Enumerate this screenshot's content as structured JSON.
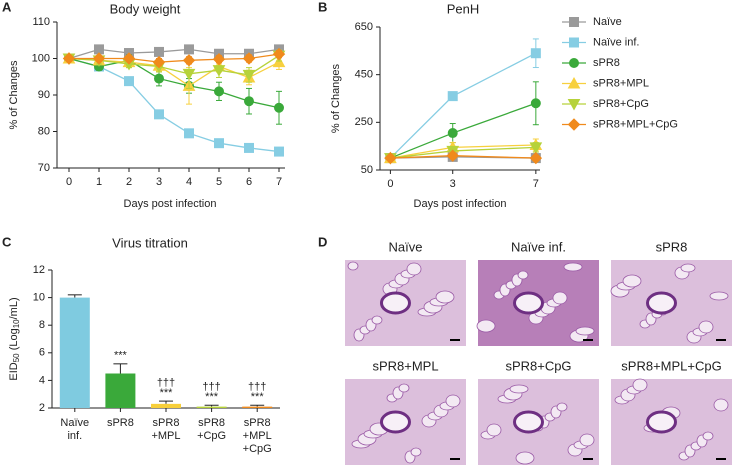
{
  "chart_data": [
    {
      "type": "line",
      "label": "A",
      "title": "Body weight",
      "xlabel": "Days post infection",
      "ylabel": "% of Changes",
      "x": [
        0,
        1,
        2,
        3,
        4,
        5,
        6,
        7
      ],
      "xlim": [
        -0.4,
        7.2
      ],
      "xticks": [
        0,
        1,
        2,
        3,
        4,
        5,
        6,
        7
      ],
      "ylim": [
        70,
        110
      ],
      "yticks": [
        70,
        80,
        90,
        100,
        110
      ],
      "series": [
        {
          "name": "Naïve",
          "color": "#9a9a9a",
          "marker": "square",
          "values": [
            100,
            102.5,
            101.5,
            101.8,
            102.5,
            101.3,
            101.3,
            102.5
          ],
          "errors": [
            0,
            0.5,
            0.5,
            0.5,
            0.5,
            0.5,
            0.5,
            0.5
          ]
        },
        {
          "name": "Naïve inf.",
          "color": "#86cde3",
          "marker": "square",
          "values": [
            100,
            97.8,
            93.8,
            84.7,
            79.5,
            76.8,
            75.5,
            74.5
          ],
          "errors": [
            0,
            0.5,
            0.5,
            0.5,
            0.5,
            0.5,
            0.5,
            0.5
          ]
        },
        {
          "name": "sPR8",
          "color": "#3aa93a",
          "marker": "circle",
          "values": [
            100,
            97.8,
            99.5,
            94.5,
            92.5,
            91,
            88.3,
            86.5
          ],
          "errors": [
            0,
            1,
            1.5,
            2,
            2,
            2.5,
            3.5,
            4.5
          ]
        },
        {
          "name": "sPR8+MPL",
          "color": "#f7d03e",
          "marker": "triangle-up",
          "values": [
            100,
            99.5,
            99,
            98,
            92.5,
            97.8,
            94.8,
            99
          ],
          "errors": [
            0,
            1,
            1.5,
            1.5,
            5,
            1.5,
            2,
            2
          ]
        },
        {
          "name": "sPR8+CpG",
          "color": "#b6d23a",
          "marker": "triangle-down",
          "values": [
            100,
            99.5,
            98.5,
            97.8,
            95.8,
            96.8,
            95.5,
            100.8
          ],
          "errors": [
            0,
            1,
            1,
            1.5,
            4,
            2,
            2,
            1.5
          ]
        },
        {
          "name": "sPR8+MPL+CpG",
          "color": "#f08a1c",
          "marker": "diamond",
          "values": [
            100,
            100,
            100,
            99,
            99.5,
            99.8,
            100,
            101.2
          ],
          "errors": [
            0,
            0.5,
            0.5,
            1,
            1,
            1,
            1,
            1
          ]
        }
      ]
    },
    {
      "type": "line",
      "label": "B",
      "title": "PenH",
      "xlabel": "Days post infection",
      "ylabel": "% of Changes",
      "legend": "right",
      "x": [
        0,
        3,
        7
      ],
      "xlim": [
        -0.5,
        7.2
      ],
      "xticks": [
        0,
        3,
        7
      ],
      "ylim": [
        50,
        650
      ],
      "yticks": [
        50,
        250,
        450,
        650
      ],
      "series": [
        {
          "name": "Naïve",
          "color": "#9a9a9a",
          "marker": "square",
          "values": [
            100,
            105,
            100
          ],
          "errors": [
            5,
            5,
            5
          ]
        },
        {
          "name": "Naïve inf.",
          "color": "#86cde3",
          "marker": "square",
          "values": [
            100,
            360,
            540
          ],
          "errors": [
            10,
            10,
            60
          ]
        },
        {
          "name": "sPR8",
          "color": "#3aa93a",
          "marker": "circle",
          "values": [
            100,
            205,
            330
          ],
          "errors": [
            10,
            40,
            90
          ]
        },
        {
          "name": "sPR8+MPL",
          "color": "#f7d03e",
          "marker": "triangle-up",
          "values": [
            100,
            145,
            155
          ],
          "errors": [
            5,
            20,
            25
          ]
        },
        {
          "name": "sPR8+CpG",
          "color": "#b6d23a",
          "marker": "triangle-down",
          "values": [
            100,
            130,
            145
          ],
          "errors": [
            5,
            15,
            20
          ]
        },
        {
          "name": "sPR8+MPL+CpG",
          "color": "#f08a1c",
          "marker": "diamond",
          "values": [
            100,
            110,
            100
          ],
          "errors": [
            5,
            10,
            10
          ]
        }
      ]
    },
    {
      "type": "bar",
      "label": "C",
      "title": "Virus titration",
      "ylabel": [
        "EID",
        "50",
        " (Log",
        "10",
        "/mL)"
      ],
      "categories": [
        [
          "Naïve",
          "inf."
        ],
        [
          "sPR8"
        ],
        [
          "sPR8",
          "+MPL"
        ],
        [
          "sPR8",
          "+CpG"
        ],
        [
          "sPR8",
          "+MPL",
          "+CpG"
        ]
      ],
      "values": [
        10,
        4.5,
        2.3,
        2.1,
        2.1
      ],
      "errors": [
        0.2,
        0.7,
        0.2,
        0.1,
        0.1
      ],
      "colors": [
        "#7fcbe0",
        "#3aa93a",
        "#f7cf3a",
        "#b6d23a",
        "#f08a1c"
      ],
      "sig_labels": [
        null,
        [
          "***"
        ],
        [
          "†††",
          "***"
        ],
        [
          "†††",
          "***"
        ],
        [
          "†††",
          "***"
        ]
      ],
      "ylim": [
        2,
        12
      ],
      "yticks": [
        2,
        4,
        6,
        8,
        10,
        12
      ]
    }
  ],
  "histology": {
    "label": "D",
    "images": [
      "Naïve",
      "Naïve inf.",
      "sPR8",
      "sPR8+MPL",
      "sPR8+CpG",
      "sPR8+MPL+CpG"
    ]
  }
}
